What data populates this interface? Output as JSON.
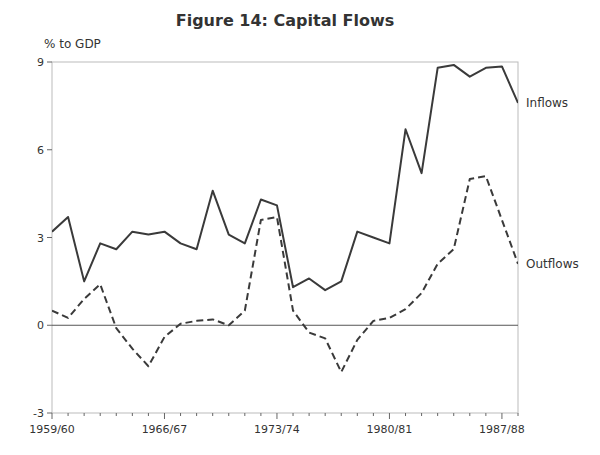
{
  "chart_data": {
    "type": "line",
    "title": "Figure 14: Capital Flows",
    "y_label": "% to GDP",
    "categories": [
      "1959/60",
      null,
      null,
      null,
      null,
      null,
      null,
      "1966/67",
      null,
      null,
      null,
      null,
      null,
      null,
      "1973/74",
      null,
      null,
      null,
      null,
      null,
      null,
      "1980/81",
      null,
      null,
      null,
      null,
      null,
      null,
      "1987/88",
      null
    ],
    "series": [
      {
        "name": "Inflows",
        "color": "#3a3a3a",
        "line_style": "solid",
        "values": [
          3.2,
          3.7,
          1.5,
          2.8,
          2.6,
          3.2,
          3.1,
          3.2,
          2.8,
          2.6,
          4.6,
          3.1,
          2.8,
          4.3,
          4.1,
          1.3,
          1.6,
          1.2,
          1.5,
          3.2,
          3.0,
          2.8,
          6.7,
          5.2,
          8.8,
          8.9,
          8.5,
          8.8,
          8.85,
          7.6
        ]
      },
      {
        "name": "Outflows",
        "color": "#3a3a3a",
        "line_style": "dashed",
        "values": [
          0.5,
          0.25,
          0.9,
          1.4,
          -0.1,
          -0.8,
          -1.4,
          -0.4,
          0.05,
          0.15,
          0.2,
          0.0,
          0.5,
          3.6,
          3.7,
          0.5,
          -0.25,
          -0.45,
          -1.6,
          -0.5,
          0.15,
          0.25,
          0.55,
          1.1,
          2.1,
          2.6,
          5.0,
          5.1,
          3.6,
          2.1
        ]
      }
    ],
    "ylim": [
      -3,
      9
    ],
    "yticks": [
      -3,
      0,
      3,
      6,
      9
    ],
    "grid": false
  }
}
